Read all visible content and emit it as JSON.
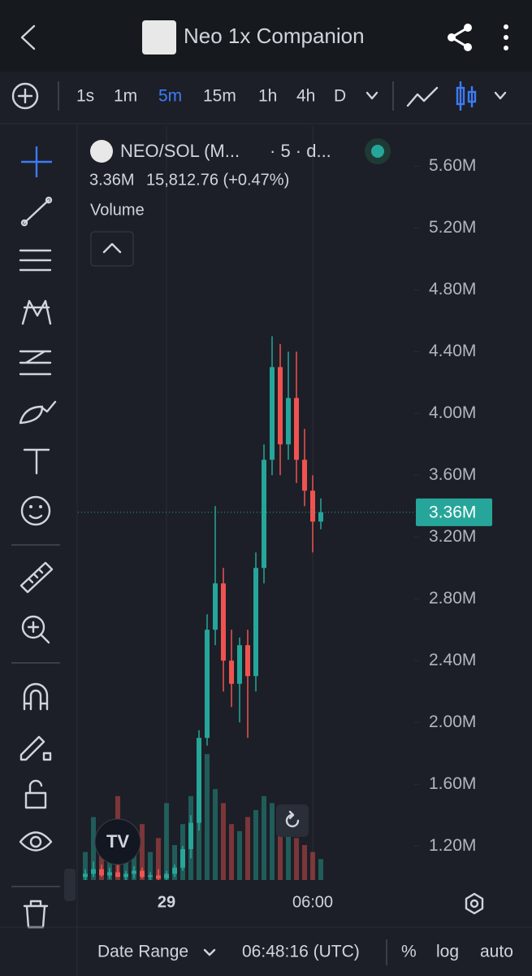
{
  "header": {
    "title": "Neo 1x Companion"
  },
  "toolbar": {
    "intervals": [
      "1s",
      "1m",
      "5m",
      "15m",
      "1h",
      "4h",
      "D"
    ],
    "active_index": 2
  },
  "chart_data": {
    "type": "candlestick",
    "symbol": "NEO/SOL (M...",
    "symbol_suffix": "· 5 · d...",
    "quote": "3.36M",
    "change": "15,812.76 (+0.47%)",
    "volume_label": "Volume",
    "categories": [
      null,
      null,
      null,
      null,
      null,
      null,
      null,
      null,
      null,
      null,
      "29",
      null,
      null,
      null,
      null,
      null,
      null,
      null,
      null,
      null,
      null,
      null,
      null,
      null,
      null,
      null,
      null,
      null,
      "06:00",
      null
    ],
    "open": [
      1000000,
      1020000,
      1050000,
      1010000,
      1030000,
      1000000,
      1020000,
      1040000,
      1000000,
      1010000,
      990000,
      1020000,
      1060000,
      1180000,
      1350000,
      1900000,
      2600000,
      2900000,
      2400000,
      2250000,
      2500000,
      2300000,
      3000000,
      3700000,
      4300000,
      3800000,
      4100000,
      3700000,
      3500000,
      3300000
    ],
    "high": [
      1050000,
      1100000,
      1080000,
      1060000,
      1090000,
      1040000,
      1070000,
      1060000,
      1030000,
      1050000,
      1040000,
      1080000,
      1200000,
      1400000,
      1950000,
      2700000,
      3400000,
      3000000,
      2600000,
      2550000,
      2600000,
      3100000,
      3800000,
      4500000,
      4450000,
      4400000,
      4400000,
      3900000,
      3600000,
      3450000
    ],
    "low": [
      980000,
      1000000,
      1000000,
      990000,
      1000000,
      980000,
      990000,
      990000,
      980000,
      980000,
      980000,
      1000000,
      1040000,
      1120000,
      1300000,
      1850000,
      2500000,
      2200000,
      2100000,
      2000000,
      1900000,
      2200000,
      2900000,
      3600000,
      3600000,
      3700000,
      3550000,
      3400000,
      3100000,
      3250000
    ],
    "close": [
      1020000,
      1050000,
      1010000,
      1030000,
      1000000,
      1020000,
      1040000,
      1000000,
      1010000,
      990000,
      1020000,
      1060000,
      1180000,
      1350000,
      1900000,
      2600000,
      2900000,
      2400000,
      2250000,
      2500000,
      2300000,
      3000000,
      3700000,
      4300000,
      3800000,
      4100000,
      3700000,
      3500000,
      3300000,
      3360000
    ],
    "volume": [
      20,
      45,
      30,
      15,
      60,
      35,
      25,
      40,
      20,
      30,
      55,
      25,
      40,
      60,
      80,
      90,
      65,
      55,
      40,
      35,
      45,
      50,
      60,
      55,
      50,
      40,
      30,
      25,
      20,
      15
    ],
    "up_color": "#26a69a",
    "down_color": "#ef5350",
    "ylim": [
      980000,
      5860000
    ],
    "yticks": [
      {
        "value": 1200000,
        "label": "1.20M"
      },
      {
        "value": 1600000,
        "label": "1.60M"
      },
      {
        "value": 2000000,
        "label": "2.00M"
      },
      {
        "value": 2400000,
        "label": "2.40M"
      },
      {
        "value": 2800000,
        "label": "2.80M"
      },
      {
        "value": 3200000,
        "label": "3.20M"
      },
      {
        "value": 3600000,
        "label": "3.60M"
      },
      {
        "value": 4000000,
        "label": "4.00M"
      },
      {
        "value": 4400000,
        "label": "4.40M"
      },
      {
        "value": 4800000,
        "label": "4.80M"
      },
      {
        "value": 5200000,
        "label": "5.20M"
      },
      {
        "value": 5600000,
        "label": "5.60M"
      }
    ],
    "y2lim": [
      0,
      100
    ],
    "last_price": {
      "value": 3360000,
      "label": "3.36M"
    },
    "grid": true
  },
  "footer": {
    "date_range": "Date Range",
    "time": "06:48:16 (UTC)",
    "options": [
      "%",
      "log",
      "auto"
    ]
  }
}
